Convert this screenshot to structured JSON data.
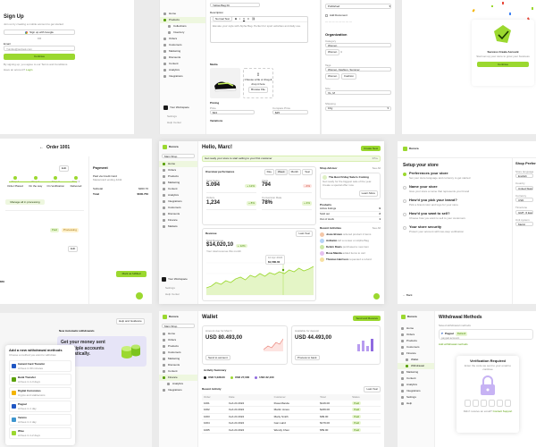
{
  "signup": {
    "title": "Sign Up",
    "subtitle": "Join us by creating a mobile account to get started",
    "google_btn": "Sign up with Google",
    "or": "OR",
    "email_label": "Email",
    "email_value": "Yumiko@outlook.com",
    "continue_btn": "Continue",
    "terms": "By signing up, you agree to our Terms and Conditions",
    "login_prompt": "Have an account?",
    "login_link": "Login"
  },
  "product_form": {
    "sidebar_items": [
      "Home",
      "Products",
      "Collections",
      "Inventory",
      "Orders",
      "Customers",
      "Marketing",
      "Discounts",
      "Content",
      "Analytics",
      "Integrations"
    ],
    "name_label": "Name",
    "name_value": "Yellow Bag Fit",
    "desc_label": "Description",
    "desc_format": "Normal Text",
    "desc_text": "Elevate your style with Alpha Bag. Perfect for sport activities and daily use.",
    "media_label": "Media",
    "media_hint": "Choose a file or drag & drop it here",
    "media_button": "Browse File",
    "pricing_label": "Pricing",
    "price_label": "Price",
    "price_value": "$24",
    "compare_label": "Compare Price",
    "compare_value": "$25",
    "variations_label": "Variations",
    "store_name": "Your Workspace",
    "settings": "Settings",
    "help": "Help Center"
  },
  "organization": {
    "status_value": "Published",
    "add_doc": "Add Document",
    "org_label": "Organization",
    "category_label": "Category",
    "category_value": "Women",
    "tags_label": "Tags",
    "tags": [
      "Women",
      "Fashion",
      "Summer"
    ],
    "sizes_label": "Size",
    "sizes_value": "XL, M",
    "shipping_label": "Shipping",
    "weight_label": "Weight",
    "weight_value": "1Kg"
  },
  "success": {
    "title": "Success Create Account",
    "subtitle": "Start set up your store to grow your business",
    "button": "Continue"
  },
  "order": {
    "title": "Order 1001",
    "steps": [
      "Order Placed",
      "On the way",
      "On Verification",
      "Delivered"
    ],
    "step_short": [
      "Step 1",
      "Step 2",
      "Step 3",
      "Step 4"
    ],
    "status_btn": "Manage all in processing",
    "payment_title": "Payment",
    "payment_method": "Paid via Credit Card",
    "payment_sub": "Mastercard ending 4242",
    "subtotal_label": "Subtotal",
    "subtotal_value": "$300.70",
    "total_label": "Total",
    "total_value": "$600.750",
    "tag_paid": "Paid",
    "tag_processing": "Processing",
    "amount": "$50",
    "edit": "Edit",
    "ship_btn": "Mark as fulfilled"
  },
  "dashboard": {
    "brand": "Dunora",
    "greeting": "Hello, Marc!",
    "new_btn": "Create New",
    "alert": "Get ready your store to start selling to your first customer",
    "overview_title": "Overview performance",
    "periods": [
      "Day",
      "Week",
      "Month",
      "Year"
    ],
    "kpis": [
      {
        "label": "Total Sales",
        "value": "5.094",
        "delta": "+ 12%",
        "positive": true
      },
      {
        "label": "Visits",
        "value": "794",
        "delta": "- 4%",
        "positive": false
      },
      {
        "label": "Orders",
        "value": "1,234",
        "delta": "+ 8%",
        "positive": true
      },
      {
        "label": "Conversion Rate",
        "value": "78%",
        "delta": "+ 4%",
        "positive": true
      }
    ],
    "revenue_title": "Revenue",
    "revenue_label": "Total Revenue",
    "revenue_value": "$14,020,10",
    "revenue_delta": "+ 12%",
    "revenue_sub": "Your total revenue this month",
    "period_select": "Last Year",
    "tooltip_date": "10 Apr 2024",
    "tooltip_value": "$1,580.00",
    "sidebar_items": [
      "Home",
      "Orders",
      "Products",
      "Marketing",
      "Content",
      "Analytics",
      "Integrations",
      "Customers",
      "Discounts",
      "Finance",
      "Markets"
    ],
    "workspace": "Main Shop",
    "settings": "Settings",
    "help": "Help Center",
    "shop_advisor": {
      "title": "Shop Advisor",
      "see_all": "See All",
      "tip_title": "The Best Friday Sale Is Coming",
      "tip_text": "Get ready for the biggest sale of the year. Create a special offer now.",
      "tip_btn": "Learn More"
    },
    "products": {
      "title": "Products",
      "rows": [
        {
          "label": "Active listings",
          "value": "9"
        },
        {
          "label": "Sold out",
          "value": "2"
        },
        {
          "label": "Out of stock",
          "value": "1"
        }
      ]
    },
    "recent": {
      "title": "Recent Activities",
      "see_all": "See All",
      "items": [
        {
          "name": "Josie Brown",
          "text": "ordered product 2 items"
        },
        {
          "name": "Ardianto",
          "text": "left a review on Alpha Bag"
        },
        {
          "name": "Kelvin Davis",
          "text": "purchased a new item"
        },
        {
          "name": "Rosa Manda",
          "text": "added items to cart"
        },
        {
          "name": "Thomas Harrison",
          "text": "requested a refund"
        }
      ]
    }
  },
  "setup": {
    "brand": "Dunora",
    "title": "Setup your store",
    "steps": [
      {
        "title": "Preferences your store",
        "desc": "Set your store language and currency to get started"
      },
      {
        "title": "Name your store",
        "desc": "Give your store a name that represents your brand"
      },
      {
        "title": "How’d you pick your brand?",
        "desc": "Pick a brand color and logo for your store"
      },
      {
        "title": "How’d you want to sell?",
        "desc": "Choose how you want to sell to your customers"
      },
      {
        "title": "Your store security",
        "desc": "Protect your account with two-step verification"
      }
    ],
    "pref_title": "Shop Preferences",
    "language_label": "Store language",
    "language_value": "English",
    "country_label": "Country",
    "country_value": "United States",
    "currency_label": "Currency",
    "currency_value": "USD",
    "timezone_label": "Timezone",
    "timezone_value": "GMT -5 Eastern Time",
    "unit_label": "Unit system",
    "unit_value": "Metric",
    "back": "Back",
    "next": "Next"
  },
  "withdraw_left": {
    "modal_title": "Add a new withdrawal methods",
    "modal_sub": "Choose a method you want to withdraw",
    "methods": [
      {
        "name": "Instant Card Transfer",
        "sub": "Arrives in 30 minutes"
      },
      {
        "name": "Bank Transfer",
        "sub": "Arrives in 1-3 days"
      },
      {
        "name": "Digital Currencies",
        "sub": "Crypto and stablecoins"
      },
      {
        "name": "Paypal",
        "sub": "Arrives in 1 day"
      },
      {
        "name": "Venmo",
        "sub": "Arrives in 1 day"
      },
      {
        "name": "Wise",
        "sub": "Arrives in 1-2 days"
      }
    ],
    "add_btn": "Add",
    "help_btn": "Help and Guidance",
    "new_title": "New Automatic withdrawals",
    "banner_text": "Get your money sent to multiple accounts automatically."
  },
  "wallet": {
    "title": "Wallet",
    "action_btn": "Send and Receive",
    "balance1_label": "Amount due for March",
    "balance1_value": "USD 80.493,00",
    "balance1_btn": "Withdraw",
    "balance1_sub": "Send to account",
    "balance2_label": "Available for deposit",
    "balance2_value": "USD 44.493,00",
    "balance2_btn": "Withdraw",
    "balance2_sub": "Process to bank",
    "summary_title": "Activity Summary",
    "summary_items": [
      "USD 5,028.00",
      "USD 27,000",
      "USD 32,100"
    ],
    "period_select": "Last Year",
    "recent_title": "Recent Activity",
    "table_headers": [
      "Order",
      "Date",
      "Customer",
      "Total",
      "Status"
    ],
    "rows": [
      {
        "order": "1001",
        "date": "Feb 24 2024",
        "customer": "Rosa Manda",
        "total": "$149.00",
        "status": "Paid"
      },
      {
        "order": "1002",
        "date": "Feb 24 2024",
        "customer": "Martin Jones",
        "total": "$249.00",
        "status": "Paid"
      },
      {
        "order": "1003",
        "date": "Feb 24 2024",
        "customer": "Marty Smith",
        "total": "$99.00",
        "status": "Paid"
      },
      {
        "order": "1004",
        "date": "Feb 24 2024",
        "customer": "Ivan Laird",
        "total": "$179.00",
        "status": "Paid"
      },
      {
        "order": "1005",
        "date": "Feb 24 2024",
        "customer": "Wendy Chen",
        "total": "$59.00",
        "status": "Paid"
      }
    ],
    "sidebar_items": [
      "Home",
      "Orders",
      "Products",
      "Customers",
      "Marketing",
      "Discounts",
      "Content",
      "Finance",
      "Analytics",
      "Integrations"
    ],
    "brand": "Dunora",
    "workspace": "Main Shop"
  },
  "withdraw_right": {
    "brand": "Dunora",
    "title": "Withdrawal Methods",
    "sub": "Saved withdrawal methods",
    "method": "Paypal",
    "method_sub": "paypal account",
    "default_tag": "Default",
    "add_link": "Add withdrawal methods",
    "verify_title": "Verification Required",
    "verify_sub": "Enter the code we sent to your email to continue",
    "resend": "Didn’t receive an email?",
    "resend_link": "Contact Support",
    "sidebar_items": [
      "Home",
      "Orders",
      "Products",
      "Customers",
      "Finance",
      "Wallet",
      "Withdrawal",
      "Marketing",
      "Content",
      "Analytics",
      "Integrations",
      "Settings",
      "Help"
    ]
  }
}
